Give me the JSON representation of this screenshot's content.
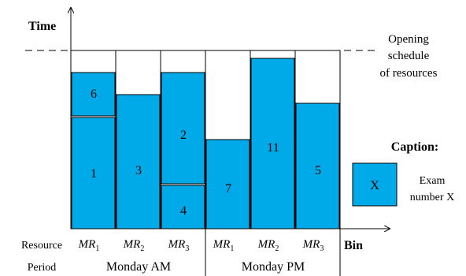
{
  "axis": {
    "y_label": "Time",
    "x_label": "Bin"
  },
  "row_labels": {
    "resource": "Resource",
    "period": "Period"
  },
  "schedule_label": {
    "line1": "Opening",
    "line2": "schedule",
    "line3": "of resources"
  },
  "caption": {
    "title": "Caption:",
    "box_text": "X",
    "desc_line1": "Exam",
    "desc_line2": "number X"
  },
  "resources": [
    {
      "prefix": "MR",
      "sub": "1"
    },
    {
      "prefix": "MR",
      "sub": "2"
    },
    {
      "prefix": "MR",
      "sub": "3"
    },
    {
      "prefix": "MR",
      "sub": "1"
    },
    {
      "prefix": "MR",
      "sub": "2"
    },
    {
      "prefix": "MR",
      "sub": "3"
    }
  ],
  "periods": [
    "Monday AM",
    "Monday PM"
  ],
  "exams": [
    {
      "label": "1"
    },
    {
      "label": "6"
    },
    {
      "label": "3"
    },
    {
      "label": "4"
    },
    {
      "label": "2"
    },
    {
      "label": "7"
    },
    {
      "label": "11"
    },
    {
      "label": "5"
    }
  ],
  "colors": {
    "exam_fill": "#00a9e8",
    "outline": "#000000"
  }
}
